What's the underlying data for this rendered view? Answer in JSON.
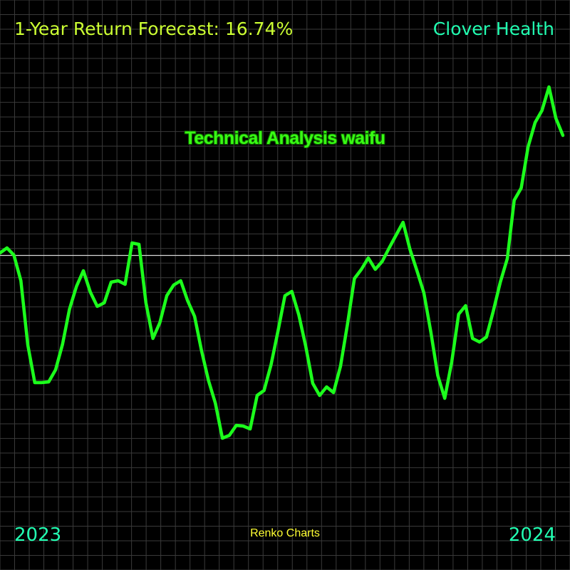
{
  "chart_data": {
    "type": "line",
    "title": "1-Year Return Forecast: 16.74%",
    "ticker": "Clover Health",
    "watermark": "Technical Analysis waifu",
    "source": "Renko Charts",
    "x_labels": {
      "start": "2023",
      "end": "2024"
    },
    "grid": true,
    "reference_line": true,
    "series": [
      {
        "values": [
          44.5,
          45.2,
          44.2,
          40.6,
          31.6,
          26.3,
          26.3,
          26.4,
          28.1,
          31.7,
          36.6,
          39.8,
          42.0,
          39.0,
          37.0,
          37.5,
          40.4,
          40.6,
          40.1,
          45.9,
          45.7,
          37.5,
          32.5,
          34.7,
          38.5,
          40.0,
          40.6,
          37.8,
          35.6,
          30.8,
          26.6,
          23.4,
          18.5,
          18.9,
          20.3,
          20.2,
          19.8,
          24.5,
          25.2,
          28.8,
          33.5,
          38.5,
          39.1,
          35.8,
          31.4,
          26.2,
          24.5,
          25.7,
          24.9,
          28.6,
          34.5,
          40.9,
          42.2,
          43.8,
          42.2,
          43.3,
          45.2,
          47.0,
          48.8,
          45.0,
          42.0,
          38.9,
          33.4,
          27.3,
          24.1,
          29.2,
          35.9,
          37.1,
          32.5,
          32.0,
          32.7,
          36.4,
          40.4,
          43.7,
          51.9,
          53.6,
          59.4,
          62.8,
          64.5,
          67.8,
          63.4,
          61.0
        ]
      }
    ],
    "colors": {
      "background": "#000000",
      "grid": "#3a3a3a",
      "line": "#1cff1c",
      "reference": "#d8d8d8",
      "forecast_text": "#ccff33",
      "ticker_text": "#22ffb2",
      "year_text": "#22ffb2",
      "source_text": "#ffff33"
    }
  }
}
